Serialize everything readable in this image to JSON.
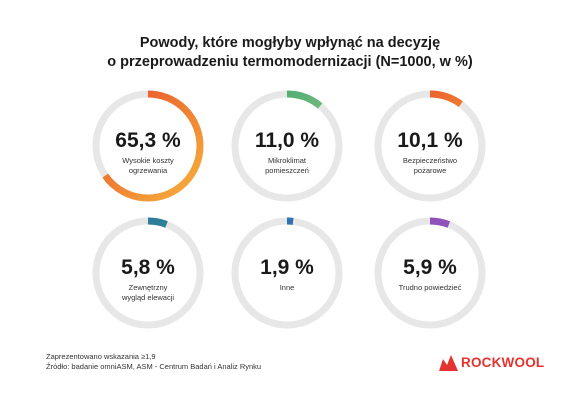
{
  "title": {
    "line1": "Powody, które mogłyby wpłynąć na decyzję",
    "line2": "o przeprowadzeniu termomodernizacji (N=1000, w %)"
  },
  "chart_data": {
    "type": "donut",
    "unit": "%",
    "items": [
      {
        "value": 65.3,
        "value_label": "65,3 %",
        "label": [
          "Wysokie koszty",
          "ogrzewania"
        ],
        "gradient": [
          "#f6b33c",
          "#e84a2a"
        ]
      },
      {
        "value": 11.0,
        "value_label": "11,0 %",
        "label": [
          "Mikroklimat",
          "pomieszczeń"
        ],
        "gradient": [
          "#a4d28a",
          "#3aa26d"
        ]
      },
      {
        "value": 10.1,
        "value_label": "10,1 %",
        "label": [
          "Bezpieczeństwo",
          "pożarowe"
        ],
        "gradient": [
          "#f6b33c",
          "#e84a2a"
        ]
      },
      {
        "value": 5.8,
        "value_label": "5,8 %",
        "label": [
          "Zewnętrzny",
          "wygląd elewacji"
        ],
        "gradient": [
          "#34a27a",
          "#2d6ea6"
        ]
      },
      {
        "value": 1.9,
        "value_label": "1,9 %",
        "label": [
          "Inne"
        ],
        "gradient": [
          "#3a7fc9",
          "#2d6ea6"
        ]
      },
      {
        "value": 5.9,
        "value_label": "5,9 %",
        "label": [
          "Trudno powiedzieć"
        ],
        "gradient": [
          "#a260c6",
          "#8a4cb8"
        ]
      }
    ],
    "track_color": "#e7e7e7"
  },
  "footnote": {
    "line1": "Zaprezentowano wskazania ≥1,9",
    "line2": "Źródło: badanie omniASM, ASM - Centrum Badań i Analiz Rynku"
  },
  "brand": {
    "name": "ROCKWOOL",
    "color": "#e3342f"
  }
}
